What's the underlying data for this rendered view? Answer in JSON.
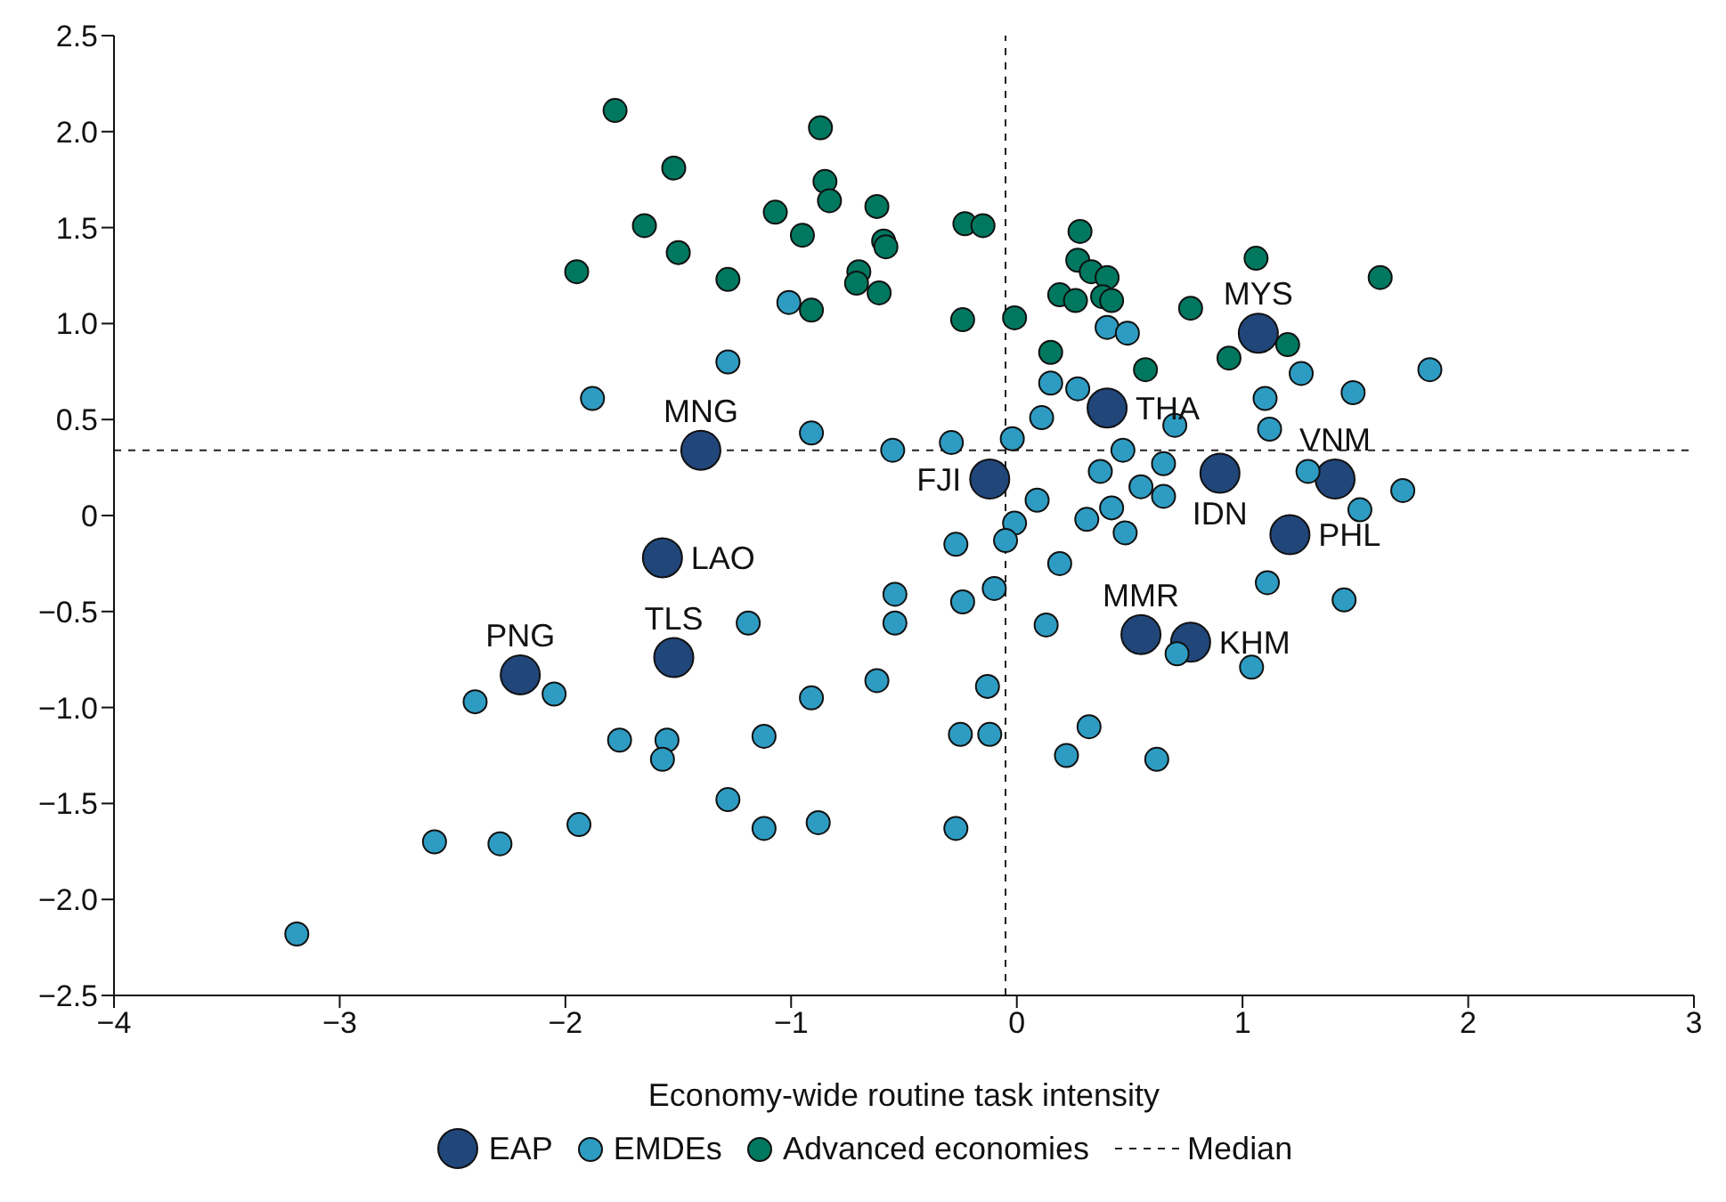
{
  "chart_data": {
    "type": "scatter",
    "xlabel": "Economy-wide routine task intensity",
    "xlim": [
      -4,
      3
    ],
    "xticks": [
      {
        "value": -4,
        "label": "−4"
      },
      {
        "value": -3,
        "label": "−3"
      },
      {
        "value": -2,
        "label": "−2"
      },
      {
        "value": -1,
        "label": "−1"
      },
      0,
      1,
      2,
      3
    ],
    "ylim": [
      -2.5,
      2.5
    ],
    "yticks": [
      {
        "value": -2.5,
        "label": "−2.5"
      },
      {
        "value": -2,
        "label": "−2.0"
      },
      {
        "value": -1.5,
        "label": "−1.5"
      },
      {
        "value": -1,
        "label": "−1.0"
      },
      {
        "value": -0.5,
        "label": "−0.5"
      },
      0,
      {
        "value": 0.5,
        "label": "0.5"
      },
      {
        "value": 1,
        "label": "1.0"
      },
      {
        "value": 1.5,
        "label": "1.5"
      },
      {
        "value": 2,
        "label": "2.0"
      },
      {
        "value": 2.5,
        "label": "2.5"
      }
    ],
    "grid": false,
    "legend": "bottom",
    "marker": "circle",
    "series": [
      {
        "name": "EAP",
        "color": "#21467a",
        "x": [
          -1.4,
          -1.57,
          -1.52,
          -2.2,
          -0.12,
          0.4,
          1.07,
          0.9,
          1.41,
          1.21,
          0.55,
          0.77
        ],
        "values": [
          0.34,
          -0.22,
          -0.74,
          -0.83,
          0.19,
          0.56,
          0.95,
          0.22,
          0.19,
          -0.1,
          -0.62,
          -0.66
        ]
      },
      {
        "name": "EMDEs",
        "color": "#2e9cc2",
        "x": [
          -1.88,
          -1.28,
          -1.01,
          -0.91,
          -0.55,
          -0.29,
          -0.02,
          0.4,
          0.49,
          0.15,
          0.27,
          0.11,
          0.7,
          1.1,
          1.26,
          1.49,
          1.83,
          1.12,
          1.29,
          1.52,
          1.71,
          0.37,
          0.47,
          0.65,
          0.55,
          0.65,
          0.48,
          0.42,
          0.09,
          -0.01,
          0.31,
          -0.05,
          -0.27,
          0.19,
          1.11,
          1.45,
          -0.54,
          -0.54,
          -0.24,
          -0.1,
          0.13,
          0.71,
          1.04,
          -1.19,
          -2.05,
          -2.4,
          -0.62,
          -0.91,
          -0.13,
          -1.76,
          -1.55,
          -1.57,
          -1.12,
          -0.25,
          -0.12,
          0.32,
          0.22,
          0.62,
          -1.28,
          -1.12,
          -0.88,
          -1.94,
          -0.27,
          -2.58,
          -2.29,
          -3.19
        ],
        "values": [
          0.61,
          0.8,
          1.11,
          0.43,
          0.34,
          0.38,
          0.4,
          0.98,
          0.95,
          0.69,
          0.66,
          0.51,
          0.47,
          0.61,
          0.74,
          0.64,
          0.76,
          0.45,
          0.23,
          0.03,
          0.13,
          0.23,
          0.34,
          0.27,
          0.15,
          0.1,
          -0.09,
          0.04,
          0.08,
          -0.04,
          -0.02,
          -0.13,
          -0.15,
          -0.25,
          -0.35,
          -0.44,
          -0.41,
          -0.56,
          -0.45,
          -0.38,
          -0.57,
          -0.72,
          -0.79,
          -0.56,
          -0.93,
          -0.97,
          -0.86,
          -0.95,
          -0.89,
          -1.17,
          -1.17,
          -1.27,
          -1.15,
          -1.14,
          -1.14,
          -1.1,
          -1.25,
          -1.27,
          -1.48,
          -1.63,
          -1.6,
          -1.61,
          -1.63,
          -1.7,
          -1.71,
          -2.18
        ]
      },
      {
        "name": "Advanced economies",
        "color": "#00785f",
        "x": [
          -1.78,
          -1.52,
          -0.87,
          -0.85,
          -0.83,
          -1.65,
          -1.5,
          -1.95,
          -1.07,
          -0.95,
          -1.28,
          -0.7,
          -0.71,
          -0.91,
          -0.62,
          -0.59,
          -0.58,
          -0.61,
          -0.23,
          -0.15,
          -0.24,
          -0.01,
          0.28,
          0.27,
          0.33,
          0.4,
          0.19,
          0.26,
          0.38,
          0.42,
          0.15,
          0.57,
          0.77,
          1.06,
          0.94,
          1.2,
          1.61
        ],
        "values": [
          2.11,
          1.81,
          2.02,
          1.74,
          1.64,
          1.51,
          1.37,
          1.27,
          1.58,
          1.46,
          1.23,
          1.27,
          1.21,
          1.07,
          1.61,
          1.43,
          1.4,
          1.16,
          1.52,
          1.51,
          1.02,
          1.03,
          1.48,
          1.33,
          1.27,
          1.24,
          1.15,
          1.12,
          1.14,
          1.12,
          0.85,
          0.76,
          1.08,
          1.34,
          0.82,
          0.89,
          1.24
        ]
      }
    ],
    "ref_lines": [
      {
        "axis": "x",
        "value": -0.05,
        "label": "Median",
        "color": "#222222",
        "line_style": "dashed"
      },
      {
        "axis": "y",
        "value": 0.34,
        "color": "#222222",
        "line_style": "dashed"
      }
    ],
    "annotations": [
      {
        "text": "MNG",
        "x": -1.4,
        "y": 0.34
      },
      {
        "text": "LAO",
        "x": -1.57,
        "y": -0.22
      },
      {
        "text": "TLS",
        "x": -1.52,
        "y": -0.74
      },
      {
        "text": "PNG",
        "x": -2.2,
        "y": -0.83
      },
      {
        "text": "FJI",
        "x": -0.12,
        "y": 0.19
      },
      {
        "text": "THA",
        "x": 0.4,
        "y": 0.56
      },
      {
        "text": "MYS",
        "x": 1.07,
        "y": 0.95
      },
      {
        "text": "IDN",
        "x": 0.9,
        "y": 0.22
      },
      {
        "text": "VNM",
        "x": 1.41,
        "y": 0.19
      },
      {
        "text": "PHL",
        "x": 1.21,
        "y": -0.1
      },
      {
        "text": "MMR",
        "x": 0.55,
        "y": -0.62
      },
      {
        "text": "KHM",
        "x": 0.77,
        "y": -0.66
      }
    ]
  }
}
